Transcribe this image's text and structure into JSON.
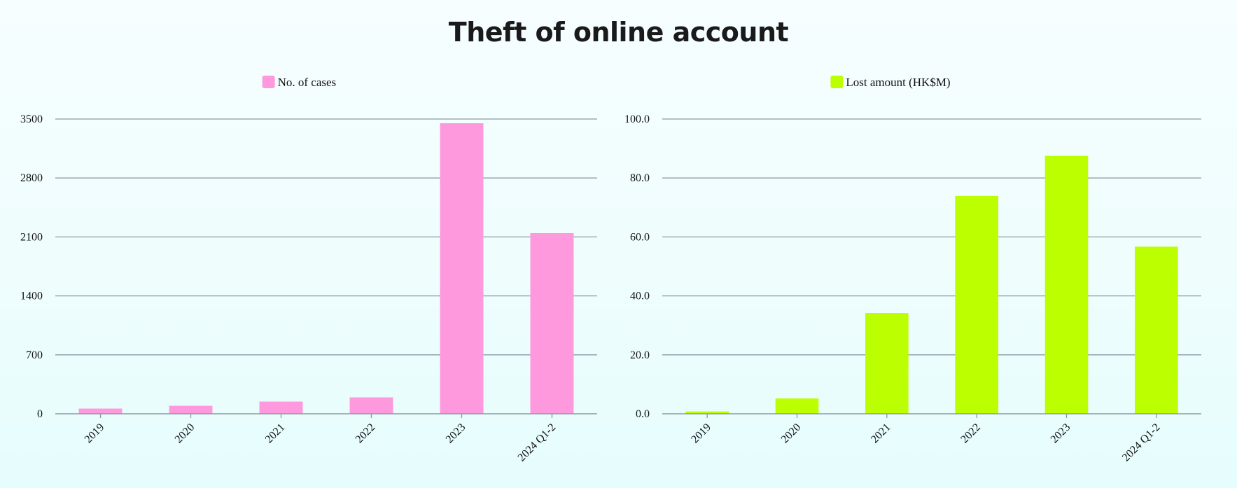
{
  "page": {
    "title": "Theft of online account"
  },
  "chart_data": [
    {
      "type": "bar",
      "categories": [
        "2019",
        "2020",
        "2021",
        "2022",
        "2023",
        "2024 Q1-2"
      ],
      "series": [
        {
          "name": "No. of cases",
          "values": [
            62,
            95,
            145,
            195,
            3450,
            2145
          ]
        }
      ],
      "ylim": [
        0,
        3500
      ],
      "yticks": [
        0,
        700,
        1400,
        2100,
        2800,
        3500
      ],
      "ytick_labels": [
        "0",
        "700",
        "1400",
        "2100",
        "2800",
        "3500"
      ],
      "color": "#ff99dd",
      "grid": true,
      "legend": "top-center"
    },
    {
      "type": "bar",
      "categories": [
        "2019",
        "2020",
        "2021",
        "2022",
        "2023",
        "2024 Q1-2"
      ],
      "series": [
        {
          "name": "Lost amount (HK$M)",
          "values": [
            0.8,
            5.2,
            34.2,
            73.9,
            87.5,
            56.7
          ]
        }
      ],
      "ylim": [
        0,
        100
      ],
      "yticks": [
        0,
        20,
        40,
        60,
        80,
        100
      ],
      "ytick_labels": [
        "0.0",
        "20.0",
        "40.0",
        "60.0",
        "80.0",
        "100.0"
      ],
      "color": "#bbff00",
      "grid": true,
      "legend": "top-center"
    }
  ]
}
